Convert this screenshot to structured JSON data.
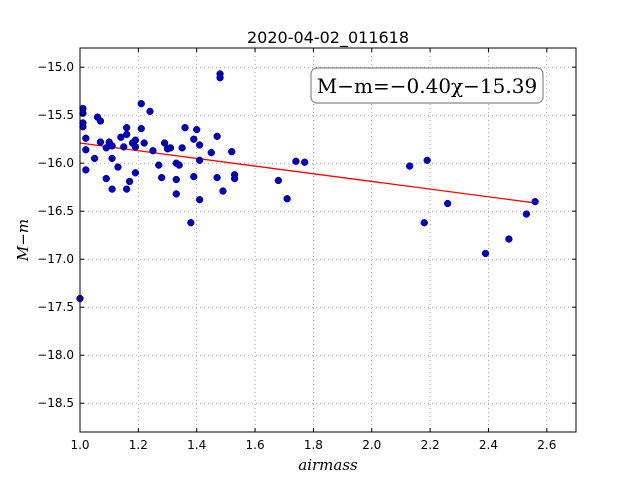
{
  "chart_data": {
    "type": "scatter",
    "title": "2020-04-02_011618",
    "xlabel": "airmass",
    "ylabel": "M−m",
    "xlim": [
      1.0,
      2.7
    ],
    "ylim": [
      -18.8,
      -14.8
    ],
    "xticks": [
      "1.0",
      "1.2",
      "1.4",
      "1.6",
      "1.8",
      "2.0",
      "2.2",
      "2.4",
      "2.6"
    ],
    "xtick_values": [
      1.0,
      1.2,
      1.4,
      1.6,
      1.8,
      2.0,
      2.2,
      2.4,
      2.6
    ],
    "yticks": [
      "−15.0",
      "−15.5",
      "−16.0",
      "−16.5",
      "−17.0",
      "−17.5",
      "−18.0",
      "−18.5"
    ],
    "ytick_values": [
      -15.0,
      -15.5,
      -16.0,
      -16.5,
      -17.0,
      -17.5,
      -18.0,
      -18.5
    ],
    "grid": true,
    "annotation": "M−m=−0.40χ−15.39",
    "annotation_position": "top-right",
    "point_color": "#0000cc",
    "fit_color": "#ff0000",
    "fit": {
      "slope": -0.4,
      "intercept": -15.39,
      "x_range": [
        1.0,
        2.56
      ]
    },
    "points": [
      [
        1.0,
        -17.41
      ],
      [
        1.01,
        -15.43
      ],
      [
        1.01,
        -15.48
      ],
      [
        1.01,
        -15.58
      ],
      [
        1.01,
        -15.62
      ],
      [
        1.02,
        -15.74
      ],
      [
        1.02,
        -15.86
      ],
      [
        1.02,
        -16.07
      ],
      [
        1.05,
        -15.95
      ],
      [
        1.06,
        -15.52
      ],
      [
        1.07,
        -15.56
      ],
      [
        1.07,
        -15.78
      ],
      [
        1.09,
        -15.84
      ],
      [
        1.09,
        -16.16
      ],
      [
        1.1,
        -15.78
      ],
      [
        1.11,
        -15.82
      ],
      [
        1.11,
        -15.95
      ],
      [
        1.11,
        -16.27
      ],
      [
        1.13,
        -16.04
      ],
      [
        1.14,
        -15.73
      ],
      [
        1.15,
        -15.83
      ],
      [
        1.16,
        -15.63
      ],
      [
        1.16,
        -15.7
      ],
      [
        1.16,
        -16.27
      ],
      [
        1.17,
        -16.19
      ],
      [
        1.18,
        -15.79
      ],
      [
        1.19,
        -15.76
      ],
      [
        1.19,
        -15.83
      ],
      [
        1.19,
        -16.1
      ],
      [
        1.21,
        -15.38
      ],
      [
        1.21,
        -15.64
      ],
      [
        1.22,
        -15.79
      ],
      [
        1.24,
        -15.46
      ],
      [
        1.25,
        -15.87
      ],
      [
        1.27,
        -16.02
      ],
      [
        1.28,
        -16.15
      ],
      [
        1.29,
        -15.79
      ],
      [
        1.3,
        -15.85
      ],
      [
        1.31,
        -15.84
      ],
      [
        1.33,
        -16.0
      ],
      [
        1.33,
        -16.17
      ],
      [
        1.33,
        -16.32
      ],
      [
        1.34,
        -16.02
      ],
      [
        1.35,
        -15.84
      ],
      [
        1.36,
        -15.63
      ],
      [
        1.38,
        -16.62
      ],
      [
        1.39,
        -15.75
      ],
      [
        1.39,
        -16.14
      ],
      [
        1.4,
        -15.65
      ],
      [
        1.41,
        -15.81
      ],
      [
        1.41,
        -15.97
      ],
      [
        1.41,
        -16.38
      ],
      [
        1.45,
        -15.89
      ],
      [
        1.47,
        -15.72
      ],
      [
        1.47,
        -16.15
      ],
      [
        1.48,
        -15.07
      ],
      [
        1.48,
        -15.11
      ],
      [
        1.49,
        -16.29
      ],
      [
        1.52,
        -15.88
      ],
      [
        1.53,
        -16.12
      ],
      [
        1.53,
        -16.16
      ],
      [
        1.68,
        -16.18
      ],
      [
        1.71,
        -16.37
      ],
      [
        1.74,
        -15.98
      ],
      [
        1.77,
        -15.99
      ],
      [
        2.13,
        -16.03
      ],
      [
        2.18,
        -16.62
      ],
      [
        2.19,
        -15.97
      ],
      [
        2.26,
        -16.42
      ],
      [
        2.39,
        -16.94
      ],
      [
        2.47,
        -16.79
      ],
      [
        2.53,
        -16.53
      ],
      [
        2.56,
        -16.4
      ]
    ]
  }
}
